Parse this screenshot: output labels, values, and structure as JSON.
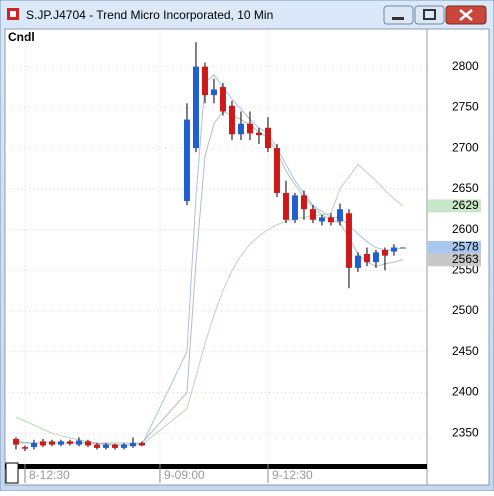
{
  "window": {
    "title": "S.JP.J4704 - Trend Micro Incorporated, 10 Min"
  },
  "chart_data": {
    "type": "candlestick",
    "label": "Cndl",
    "x": [
      0,
      1,
      2,
      3,
      4,
      5,
      6,
      7,
      8,
      9,
      10,
      11,
      12,
      13,
      14,
      19,
      20,
      21,
      22,
      23,
      24,
      25,
      26,
      27,
      28,
      29,
      30,
      31,
      32,
      33,
      34,
      35,
      36,
      37,
      38,
      39,
      40,
      41,
      42,
      43
    ],
    "open": [
      2343,
      2333,
      2333,
      2340,
      2340,
      2336,
      2340,
      2336,
      2340,
      2336,
      2332,
      2336,
      2332,
      2334,
      2338,
      2635,
      2700,
      2800,
      2765,
      2775,
      2752,
      2717,
      2730,
      2719,
      2725,
      2700,
      2645,
      2612,
      2642,
      2625,
      2610,
      2615,
      2610,
      2620,
      2553,
      2570,
      2560,
      2575,
      2573,
      2578
    ],
    "high": [
      2345,
      2335,
      2342,
      2343,
      2342,
      2342,
      2342,
      2345,
      2342,
      2338,
      2338,
      2337,
      2338,
      2345,
      2340,
      2755,
      2830,
      2805,
      2785,
      2780,
      2758,
      2745,
      2745,
      2725,
      2738,
      2705,
      2660,
      2645,
      2648,
      2630,
      2618,
      2620,
      2632,
      2625,
      2572,
      2578,
      2575,
      2578,
      2582,
      2578
    ],
    "low": [
      2330,
      2328,
      2330,
      2333,
      2334,
      2334,
      2335,
      2334,
      2333,
      2330,
      2330,
      2330,
      2330,
      2332,
      2334,
      2630,
      2695,
      2755,
      2755,
      2740,
      2710,
      2710,
      2710,
      2705,
      2695,
      2640,
      2608,
      2608,
      2612,
      2608,
      2605,
      2605,
      2605,
      2528,
      2548,
      2555,
      2553,
      2550,
      2568,
      2578
    ],
    "close": [
      2336,
      2331,
      2338,
      2335,
      2336,
      2340,
      2337,
      2341,
      2335,
      2332,
      2336,
      2332,
      2336,
      2338,
      2335,
      2735,
      2800,
      2765,
      2772,
      2745,
      2717,
      2730,
      2718,
      2716,
      2700,
      2645,
      2612,
      2642,
      2625,
      2612,
      2615,
      2609,
      2625,
      2553,
      2568,
      2560,
      2572,
      2568,
      2578,
      2578
    ],
    "up_color": "#1f5fcf",
    "down_color": "#d01818",
    "series": [
      {
        "color": "#a9c2e8",
        "label_color": "#a8c8f0",
        "values": [
          2340,
          2339,
          2338,
          2338,
          2338,
          2338,
          2338,
          2339,
          2338,
          2337,
          2336,
          2336,
          2335,
          2336,
          2336,
          2450,
          2640,
          2780,
          2790,
          2775,
          2760,
          2748,
          2735,
          2725,
          2718,
          2700,
          2680,
          2660,
          2645,
          2630,
          2622,
          2615,
          2615,
          2605,
          2595,
          2585,
          2578,
          2575,
          2575,
          2578
        ]
      },
      {
        "color": "#b7d8b4",
        "label_color": "#c8e6c8",
        "values": [
          2370,
          2365,
          2360,
          2355,
          2350,
          2347,
          2344,
          2342,
          2340,
          2338,
          2337,
          2336,
          2336,
          2336,
          2336,
          2380,
          2420,
          2460,
          2495,
          2525,
          2550,
          2568,
          2582,
          2592,
          2600,
          2606,
          2610,
          2613,
          2615,
          2617,
          2618,
          2620,
          2650,
          2665,
          2680,
          2670,
          2660,
          2648,
          2638,
          2629
        ]
      },
      {
        "color": "#b8bcc0",
        "label_color": "#c8c8c8",
        "values": [
          2338,
          2338,
          2338,
          2338,
          2338,
          2338,
          2338,
          2338,
          2338,
          2338,
          2338,
          2338,
          2338,
          2338,
          2338,
          2400,
          2560,
          2690,
          2730,
          2745,
          2740,
          2735,
          2728,
          2720,
          2712,
          2695,
          2672,
          2655,
          2640,
          2628,
          2618,
          2612,
          2608,
          2590,
          2570,
          2560,
          2555,
          2558,
          2560,
          2563
        ]
      }
    ],
    "ylim": [
      2311,
      2845
    ],
    "yticks": [
      2350,
      2400,
      2450,
      2500,
      2550,
      2600,
      2650,
      2700,
      2750,
      2800
    ],
    "xlim": [
      -1.22,
      45.67
    ],
    "xticks": [
      {
        "value": 1,
        "label": "8-12:30"
      },
      {
        "value": 16,
        "label": "9-09:00"
      },
      {
        "value": 28,
        "label": "9-12:30"
      }
    ],
    "grid": true
  }
}
